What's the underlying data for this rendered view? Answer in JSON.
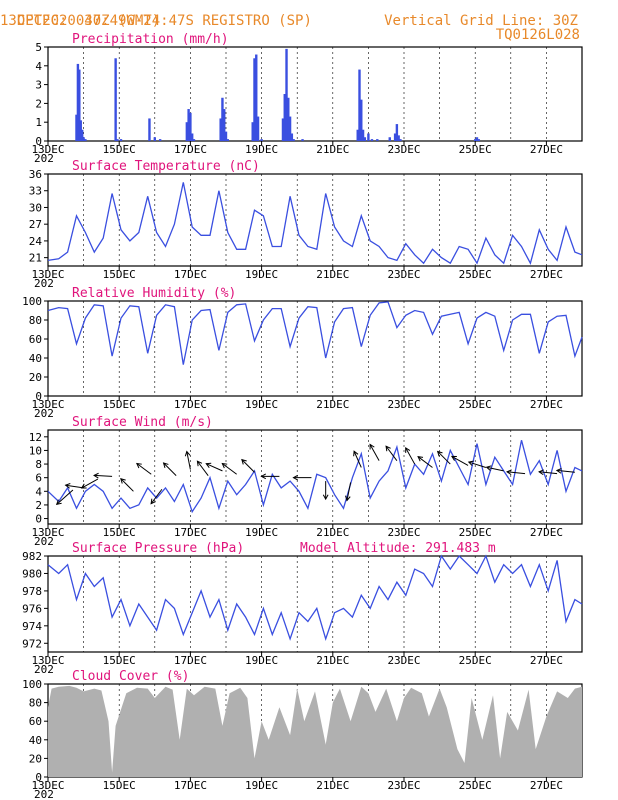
{
  "header": {
    "source": "CPTEC:",
    "coords": "047:49W-24:47S",
    "station": "REGISTRO (SP)",
    "date": "13DEC2020 30Z (GMT)",
    "grid_note": "Vertical Grid Line: 30Z",
    "code": "TQ0126L028"
  },
  "colors": {
    "series": "#3a4fe0",
    "cloud": "#b0b0b0",
    "title": "#e0147c",
    "header": "#e8892a"
  },
  "x_labels": [
    "13DEC",
    "15DEC",
    "17DEC",
    "19DEC",
    "21DEC",
    "23DEC",
    "25DEC",
    "27DEC"
  ],
  "x_sublabel": "202",
  "chart_data": [
    {
      "id": "precip",
      "type": "bar",
      "title": "Precipitation (mm/h)",
      "ylim": [
        0,
        5
      ],
      "yticks": [
        0,
        1,
        2,
        3,
        4,
        5
      ],
      "x_range_days": [
        13.0,
        28.0
      ],
      "x": [
        13.8,
        13.84,
        13.88,
        13.92,
        13.96,
        14.0,
        14.05,
        14.9,
        14.95,
        15.05,
        15.85,
        16.0,
        16.15,
        16.9,
        16.95,
        17.0,
        17.05,
        17.1,
        17.85,
        17.9,
        17.95,
        18.0,
        18.05,
        18.75,
        18.8,
        18.85,
        18.9,
        19.0,
        19.6,
        19.65,
        19.7,
        19.75,
        19.8,
        19.85,
        19.9,
        20.15,
        21.7,
        21.75,
        21.8,
        21.85,
        21.9,
        22.0,
        22.1,
        22.25,
        22.6,
        22.75,
        22.8,
        22.85,
        22.9,
        25.0,
        25.05,
        25.1
      ],
      "values": [
        1.4,
        4.1,
        3.8,
        1.1,
        0.6,
        0.2,
        0.1,
        4.4,
        0.1,
        0.1,
        1.2,
        0.2,
        0.1,
        1.0,
        1.7,
        1.5,
        0.4,
        0.1,
        1.2,
        2.3,
        1.7,
        0.5,
        0.1,
        1.0,
        4.4,
        4.6,
        1.3,
        0.1,
        1.2,
        2.5,
        4.9,
        2.3,
        1.3,
        0.4,
        0.1,
        0.1,
        0.6,
        3.8,
        2.2,
        0.6,
        0.2,
        0.4,
        0.1,
        0.1,
        0.2,
        0.4,
        0.9,
        0.3,
        0.1,
        0.1,
        0.2,
        0.1
      ]
    },
    {
      "id": "temp",
      "type": "line",
      "title": "Surface Temperature (nC)",
      "ylim": [
        19.5,
        36
      ],
      "yticks": [
        21,
        24,
        27,
        30,
        33,
        36
      ],
      "x_range_days": [
        13.0,
        28.0
      ],
      "x": [
        13.0,
        13.3,
        13.55,
        13.8,
        14.05,
        14.3,
        14.55,
        14.8,
        15.05,
        15.3,
        15.55,
        15.8,
        16.05,
        16.3,
        16.55,
        16.8,
        17.05,
        17.3,
        17.55,
        17.8,
        18.05,
        18.3,
        18.55,
        18.8,
        19.05,
        19.3,
        19.55,
        19.8,
        20.05,
        20.3,
        20.55,
        20.8,
        21.05,
        21.3,
        21.55,
        21.8,
        22.05,
        22.3,
        22.55,
        22.8,
        23.05,
        23.3,
        23.55,
        23.8,
        24.05,
        24.3,
        24.55,
        24.8,
        25.05,
        25.3,
        25.55,
        25.8,
        26.05,
        26.3,
        26.55,
        26.8,
        27.05,
        27.3,
        27.55,
        27.8,
        28.0
      ],
      "values": [
        20.5,
        20.8,
        22.0,
        28.5,
        25.5,
        22.0,
        24.5,
        32.5,
        26.0,
        24.0,
        25.5,
        32.0,
        25.5,
        23.0,
        27.0,
        34.5,
        26.5,
        25.0,
        25.0,
        33.0,
        25.5,
        22.5,
        22.5,
        29.5,
        28.5,
        23.0,
        23.0,
        32.0,
        25.0,
        23.0,
        22.5,
        32.5,
        26.5,
        24.0,
        23.0,
        28.5,
        24.0,
        23.0,
        21.0,
        20.5,
        23.5,
        21.5,
        20.0,
        22.5,
        21.0,
        20.0,
        23.0,
        22.5,
        20.0,
        24.5,
        21.5,
        20.0,
        25.0,
        23.0,
        20.0,
        26.0,
        22.5,
        20.5,
        26.5,
        22.0,
        21.5
      ]
    },
    {
      "id": "rh",
      "type": "line",
      "title": "Relative Humidity (%)",
      "ylim": [
        0,
        100
      ],
      "yticks": [
        0,
        20,
        40,
        60,
        80,
        100
      ],
      "x_range_days": [
        13.0,
        28.0
      ],
      "x": [
        13.0,
        13.3,
        13.55,
        13.8,
        14.05,
        14.3,
        14.55,
        14.8,
        15.05,
        15.3,
        15.55,
        15.8,
        16.05,
        16.3,
        16.55,
        16.8,
        17.05,
        17.3,
        17.55,
        17.8,
        18.05,
        18.3,
        18.55,
        18.8,
        19.05,
        19.3,
        19.55,
        19.8,
        20.05,
        20.3,
        20.55,
        20.8,
        21.05,
        21.3,
        21.55,
        21.8,
        22.05,
        22.3,
        22.55,
        22.8,
        23.05,
        23.3,
        23.55,
        23.8,
        24.05,
        24.3,
        24.55,
        24.8,
        25.05,
        25.3,
        25.55,
        25.8,
        26.05,
        26.3,
        26.55,
        26.8,
        27.05,
        27.3,
        27.55,
        27.8,
        28.0
      ],
      "values": [
        90,
        93,
        92,
        55,
        82,
        96,
        95,
        42,
        82,
        95,
        94,
        45,
        85,
        96,
        94,
        33,
        80,
        90,
        91,
        48,
        88,
        96,
        97,
        58,
        80,
        92,
        92,
        52,
        82,
        94,
        93,
        40,
        78,
        92,
        93,
        52,
        85,
        98,
        99,
        72,
        85,
        90,
        88,
        65,
        84,
        86,
        88,
        55,
        82,
        88,
        84,
        48,
        80,
        86,
        86,
        45,
        78,
        84,
        85,
        42,
        62
      ]
    },
    {
      "id": "wind",
      "type": "line",
      "title": "Surface Wind (m/s)",
      "ylim": [
        -0.8,
        13
      ],
      "yticks": [
        0,
        2,
        4,
        6,
        8,
        10,
        12
      ],
      "x_range_days": [
        13.0,
        28.0
      ],
      "x": [
        13.0,
        13.3,
        13.55,
        13.8,
        14.05,
        14.3,
        14.55,
        14.8,
        15.05,
        15.3,
        15.55,
        15.8,
        16.05,
        16.3,
        16.55,
        16.8,
        17.05,
        17.3,
        17.55,
        17.8,
        18.05,
        18.3,
        18.55,
        18.8,
        19.05,
        19.3,
        19.55,
        19.8,
        20.05,
        20.3,
        20.55,
        20.8,
        21.05,
        21.3,
        21.55,
        21.8,
        22.05,
        22.3,
        22.55,
        22.8,
        23.05,
        23.3,
        23.55,
        23.8,
        24.05,
        24.3,
        24.55,
        24.8,
        25.05,
        25.3,
        25.55,
        25.8,
        26.05,
        26.3,
        26.55,
        26.8,
        27.05,
        27.3,
        27.55,
        27.8,
        28.0
      ],
      "values": [
        4.0,
        2.5,
        4.5,
        1.5,
        4.0,
        5.0,
        4.0,
        1.5,
        3.0,
        1.5,
        2.0,
        4.5,
        3.0,
        4.5,
        2.5,
        5.0,
        1.0,
        3.0,
        6.0,
        1.5,
        5.5,
        3.5,
        5.0,
        7.0,
        2.0,
        6.5,
        4.5,
        5.5,
        4.0,
        1.5,
        6.5,
        6.0,
        3.5,
        1.5,
        6.0,
        9.5,
        3.0,
        5.5,
        7.0,
        10.5,
        4.5,
        8.0,
        6.5,
        9.5,
        5.5,
        10.0,
        7.5,
        5.0,
        11.0,
        5.0,
        9.0,
        7.0,
        5.0,
        11.5,
        6.5,
        8.5,
        5.0,
        10.0,
        4.0,
        7.5,
        7.0
      ],
      "arrows": [
        {
          "x": 13.7,
          "y": 4.2,
          "u": -0.9,
          "v": -0.8
        },
        {
          "x": 14.0,
          "y": 4.5,
          "u": -1.0,
          "v": 0.15
        },
        {
          "x": 14.4,
          "y": 5.8,
          "u": -0.9,
          "v": -0.5
        },
        {
          "x": 14.8,
          "y": 6.2,
          "u": -1.0,
          "v": 0.05
        },
        {
          "x": 15.4,
          "y": 4.0,
          "u": -0.7,
          "v": 0.7
        },
        {
          "x": 15.9,
          "y": 6.5,
          "u": -0.8,
          "v": 0.6
        },
        {
          "x": 16.2,
          "y": 4.3,
          "u": -0.6,
          "v": -0.8
        },
        {
          "x": 16.6,
          "y": 6.3,
          "u": -0.7,
          "v": 0.7
        },
        {
          "x": 17.0,
          "y": 7.2,
          "u": -0.2,
          "v": 1.0
        },
        {
          "x": 17.5,
          "y": 6.3,
          "u": -0.6,
          "v": 0.8
        },
        {
          "x": 17.9,
          "y": 7.0,
          "u": -0.9,
          "v": 0.4
        },
        {
          "x": 18.3,
          "y": 6.5,
          "u": -0.8,
          "v": 0.6
        },
        {
          "x": 18.8,
          "y": 6.8,
          "u": -0.7,
          "v": 0.7
        },
        {
          "x": 19.5,
          "y": 6.2,
          "u": -1.0,
          "v": 0.0
        },
        {
          "x": 20.4,
          "y": 6.0,
          "u": -1.0,
          "v": 0.0
        },
        {
          "x": 20.8,
          "y": 5.5,
          "u": 0.0,
          "v": -1.0
        },
        {
          "x": 21.5,
          "y": 5.3,
          "u": -0.2,
          "v": -1.0
        },
        {
          "x": 21.8,
          "y": 7.5,
          "u": -0.4,
          "v": 0.9
        },
        {
          "x": 22.3,
          "y": 8.5,
          "u": -0.5,
          "v": 0.9
        },
        {
          "x": 22.8,
          "y": 8.5,
          "u": -0.6,
          "v": 0.8
        },
        {
          "x": 23.3,
          "y": 8.0,
          "u": -0.5,
          "v": 0.9
        },
        {
          "x": 23.8,
          "y": 7.5,
          "u": -0.8,
          "v": 0.6
        },
        {
          "x": 24.3,
          "y": 8.0,
          "u": -0.7,
          "v": 0.7
        },
        {
          "x": 24.8,
          "y": 7.8,
          "u": -0.9,
          "v": 0.5
        },
        {
          "x": 25.3,
          "y": 7.5,
          "u": -0.95,
          "v": 0.3
        },
        {
          "x": 25.8,
          "y": 7.0,
          "u": -0.95,
          "v": 0.2
        },
        {
          "x": 26.4,
          "y": 6.6,
          "u": -1.0,
          "v": 0.1
        },
        {
          "x": 27.3,
          "y": 6.6,
          "u": -1.0,
          "v": 0.1
        },
        {
          "x": 27.8,
          "y": 6.8,
          "u": -1.0,
          "v": 0.1
        }
      ]
    },
    {
      "id": "pressure",
      "type": "line",
      "title": "Surface Pressure (hPa)",
      "annotation": "Model Altitude: 291.483 m",
      "ylim": [
        971,
        982
      ],
      "yticks": [
        972,
        974,
        976,
        978,
        980,
        982
      ],
      "x_range_days": [
        13.0,
        28.0
      ],
      "x": [
        13.0,
        13.3,
        13.55,
        13.8,
        14.05,
        14.3,
        14.55,
        14.8,
        15.05,
        15.3,
        15.55,
        15.8,
        16.05,
        16.3,
        16.55,
        16.8,
        17.05,
        17.3,
        17.55,
        17.8,
        18.05,
        18.3,
        18.55,
        18.8,
        19.05,
        19.3,
        19.55,
        19.8,
        20.05,
        20.3,
        20.55,
        20.8,
        21.05,
        21.3,
        21.55,
        21.8,
        22.05,
        22.3,
        22.55,
        22.8,
        23.05,
        23.3,
        23.55,
        23.8,
        24.05,
        24.3,
        24.55,
        24.8,
        25.05,
        25.3,
        25.55,
        25.8,
        26.05,
        26.3,
        26.55,
        26.8,
        27.05,
        27.3,
        27.55,
        27.8,
        28.0
      ],
      "values": [
        981.0,
        980.0,
        981.0,
        977.0,
        980.0,
        978.5,
        979.5,
        975.0,
        977.0,
        974.0,
        976.5,
        975.0,
        973.5,
        977.0,
        976.0,
        973.0,
        975.5,
        978.0,
        975.0,
        977.0,
        973.5,
        976.5,
        975.0,
        973.0,
        976.0,
        973.0,
        975.5,
        972.5,
        975.5,
        974.5,
        976.0,
        972.5,
        975.5,
        976.0,
        975.0,
        977.5,
        976.0,
        978.5,
        977.0,
        979.0,
        977.5,
        980.5,
        980.0,
        978.5,
        982.0,
        980.5,
        982.0,
        981.0,
        980.0,
        982.0,
        979.0,
        981.0,
        980.0,
        981.0,
        978.5,
        981.0,
        978.0,
        981.5,
        974.5,
        977.0,
        976.5
      ]
    },
    {
      "id": "cloud",
      "type": "area",
      "title": "Cloud Cover (%)",
      "ylim": [
        0,
        100
      ],
      "yticks": [
        0,
        20,
        40,
        60,
        80,
        100
      ],
      "x_range_days": [
        13.0,
        28.0
      ],
      "x": [
        13.0,
        13.1,
        13.3,
        13.6,
        13.8,
        14.0,
        14.3,
        14.5,
        14.7,
        14.8,
        14.9,
        15.2,
        15.5,
        15.8,
        16.0,
        16.3,
        16.5,
        16.7,
        16.9,
        17.1,
        17.4,
        17.7,
        17.9,
        18.1,
        18.4,
        18.6,
        18.8,
        19.0,
        19.2,
        19.5,
        19.8,
        20.0,
        20.2,
        20.5,
        20.8,
        21.0,
        21.2,
        21.5,
        21.8,
        22.0,
        22.2,
        22.5,
        22.8,
        23.0,
        23.2,
        23.5,
        23.7,
        24.0,
        24.2,
        24.5,
        24.7,
        24.9,
        25.2,
        25.5,
        25.7,
        25.9,
        26.2,
        26.5,
        26.7,
        27.0,
        27.3,
        27.6,
        27.8,
        28.0
      ],
      "values": [
        75,
        95,
        97,
        98,
        96,
        92,
        95,
        93,
        60,
        5,
        55,
        90,
        96,
        95,
        85,
        97,
        94,
        40,
        95,
        88,
        97,
        95,
        55,
        90,
        96,
        85,
        20,
        60,
        40,
        75,
        45,
        95,
        60,
        92,
        35,
        80,
        95,
        60,
        97,
        90,
        70,
        95,
        60,
        85,
        96,
        90,
        65,
        95,
        75,
        30,
        15,
        85,
        40,
        88,
        20,
        70,
        50,
        94,
        30,
        65,
        92,
        85,
        95,
        97
      ]
    }
  ]
}
